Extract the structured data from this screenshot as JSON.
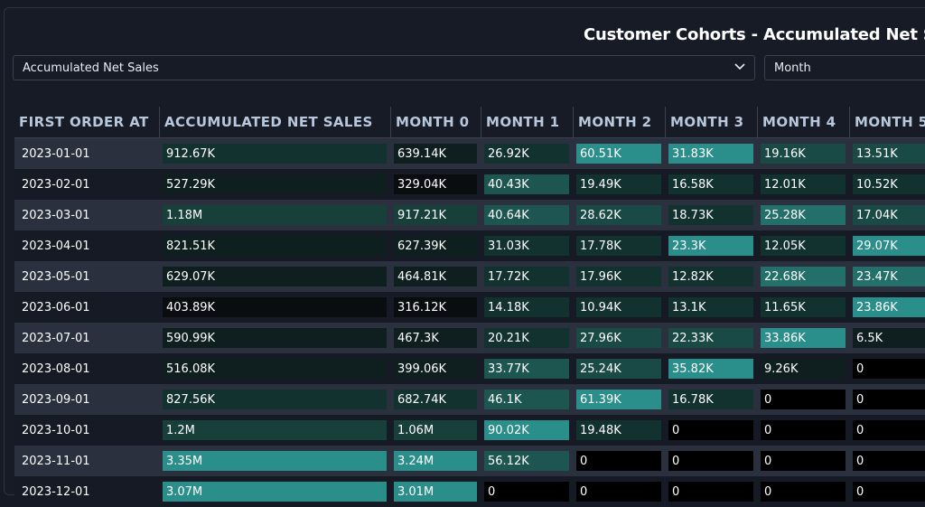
{
  "title": "Customer Cohorts - Accumulated Net Sale",
  "filters": {
    "metric": "Accumulated Net Sales",
    "period": "Month"
  },
  "columns": [
    "FIRST ORDER AT",
    "ACCUMULATED NET SALES",
    "MONTH 0",
    "MONTH 1",
    "MONTH 2",
    "MONTH 3",
    "MONTH 4",
    "MONTH 5"
  ],
  "rows": [
    {
      "date": "2023-01-01",
      "cells": [
        "912.67K",
        "639.14K",
        "26.92K",
        "60.51K",
        "31.83K",
        "19.16K",
        "13.51K"
      ],
      "colors": [
        "#12322f",
        "#0f1e1f",
        "#12322f",
        "#2a8f8a",
        "#2a8f8a",
        "#1a4a45",
        "#1a4a45"
      ]
    },
    {
      "date": "2023-02-01",
      "cells": [
        "527.29K",
        "329.04K",
        "40.43K",
        "19.49K",
        "16.58K",
        "12.01K",
        "10.52K"
      ],
      "colors": [
        "#0f1e1f",
        "#090d10",
        "#1d5650",
        "#12322f",
        "#12322f",
        "#12322f",
        "#12322f"
      ]
    },
    {
      "date": "2023-03-01",
      "cells": [
        "1.18M",
        "917.21K",
        "40.64K",
        "28.62K",
        "18.73K",
        "25.28K",
        "17.04K"
      ],
      "colors": [
        "#17403b",
        "#17403b",
        "#1d5650",
        "#1a4a45",
        "#12322f",
        "#227069",
        "#1a4a45"
      ]
    },
    {
      "date": "2023-04-01",
      "cells": [
        "821.51K",
        "627.39K",
        "31.03K",
        "17.78K",
        "23.3K",
        "12.05K",
        "29.07K"
      ],
      "colors": [
        "#0f1e1f",
        "#0f1e1f",
        "#12322f",
        "#12322f",
        "#2a8f8a",
        "#12322f",
        "#2a8f8a"
      ]
    },
    {
      "date": "2023-05-01",
      "cells": [
        "629.07K",
        "464.81K",
        "17.72K",
        "17.96K",
        "12.82K",
        "22.68K",
        "23.47K"
      ],
      "colors": [
        "#0f1e1f",
        "#0f1e1f",
        "#12322f",
        "#12322f",
        "#12322f",
        "#227069",
        "#227069"
      ]
    },
    {
      "date": "2023-06-01",
      "cells": [
        "403.89K",
        "316.12K",
        "14.18K",
        "10.94K",
        "13.1K",
        "11.65K",
        "23.86K"
      ],
      "colors": [
        "#090d10",
        "#090d10",
        "#12322f",
        "#12322f",
        "#12322f",
        "#12322f",
        "#2a8f8a"
      ]
    },
    {
      "date": "2023-07-01",
      "cells": [
        "590.99K",
        "467.3K",
        "20.21K",
        "27.96K",
        "22.33K",
        "33.86K",
        "6.5K"
      ],
      "colors": [
        "#0f1e1f",
        "#0f1e1f",
        "#12322f",
        "#1a4a45",
        "#1a4a45",
        "#2a8f8a",
        "#0f1e1f"
      ]
    },
    {
      "date": "2023-08-01",
      "cells": [
        "516.08K",
        "399.06K",
        "33.77K",
        "25.24K",
        "35.82K",
        "9.26K",
        "0"
      ],
      "colors": [
        "#0f1e1f",
        "#0f1e1f",
        "#1d5650",
        "#1a4a45",
        "#2a8f8a",
        "#0f1e1f",
        "#000000"
      ]
    },
    {
      "date": "2023-09-01",
      "cells": [
        "827.56K",
        "682.74K",
        "46.1K",
        "61.39K",
        "16.78K",
        "0",
        "0"
      ],
      "colors": [
        "#12322f",
        "#12322f",
        "#1d5650",
        "#2a8f8a",
        "#12322f",
        "#000000",
        "#000000"
      ]
    },
    {
      "date": "2023-10-01",
      "cells": [
        "1.2M",
        "1.06M",
        "90.02K",
        "19.48K",
        "0",
        "0",
        "0"
      ],
      "colors": [
        "#17403b",
        "#17403b",
        "#2a8f8a",
        "#12322f",
        "#000000",
        "#000000",
        "#000000"
      ]
    },
    {
      "date": "2023-11-01",
      "cells": [
        "3.35M",
        "3.24M",
        "56.12K",
        "0",
        "0",
        "0",
        "0"
      ],
      "colors": [
        "#2a8f8a",
        "#2a8f8a",
        "#1d5650",
        "#000000",
        "#000000",
        "#000000",
        "#000000"
      ]
    },
    {
      "date": "2023-12-01",
      "cells": [
        "3.07M",
        "3.01M",
        "0",
        "0",
        "0",
        "0",
        "0"
      ],
      "colors": [
        "#2a8f8a",
        "#2a8f8a",
        "#000000",
        "#000000",
        "#000000",
        "#000000",
        "#000000"
      ]
    }
  ]
}
